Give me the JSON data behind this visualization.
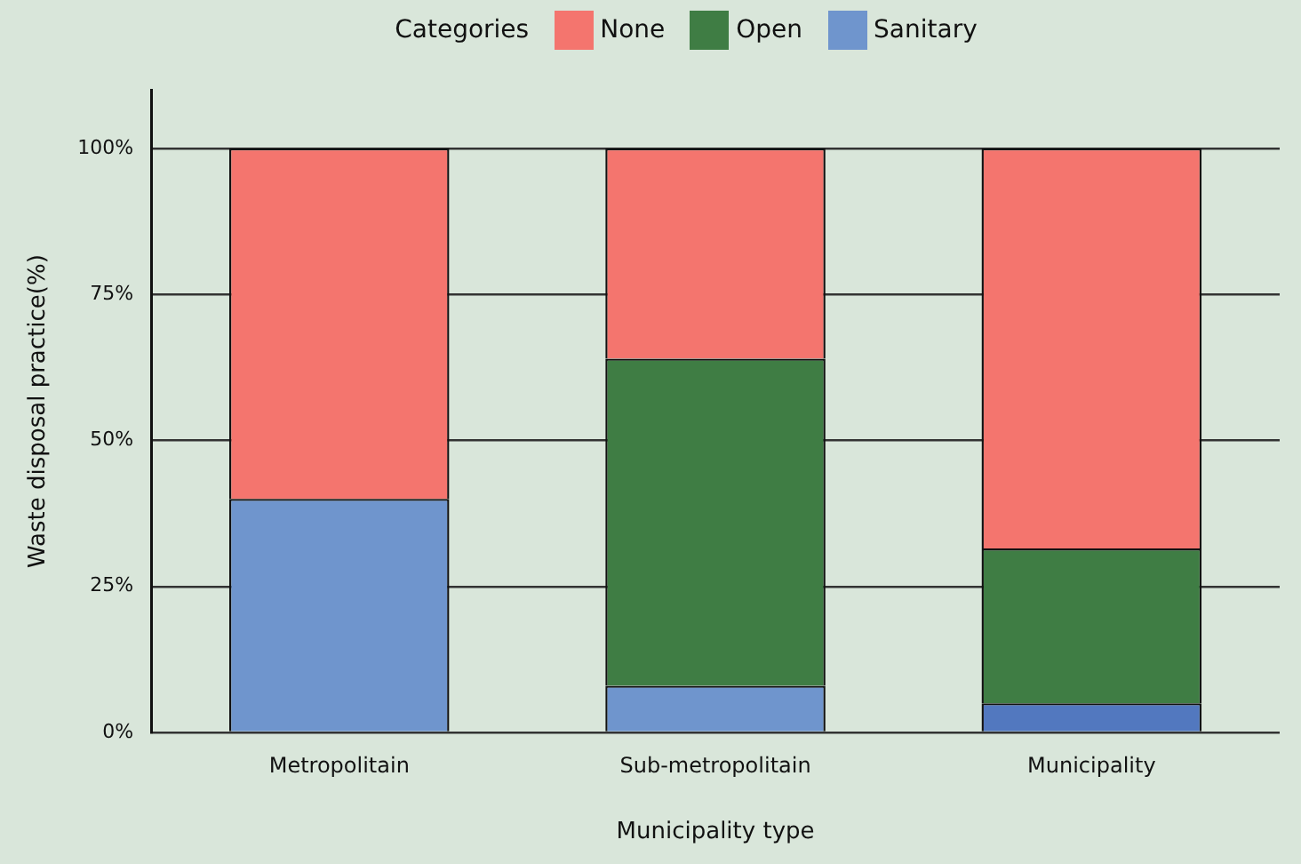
{
  "chart_data": {
    "type": "bar",
    "stacked": true,
    "xlabel": "Municipality type",
    "ylabel": "Waste disposal practice(%)",
    "legend_title": "Categories",
    "legend": "top",
    "categories": [
      "Metropolitain",
      "Sub-metropolitain",
      "Municipality"
    ],
    "series": [
      {
        "name": "Sanitary",
        "color": "#6f95cd",
        "colors": [
          "#6f95cd",
          "#6f95cd",
          "#5278bf"
        ],
        "values": [
          40,
          8,
          5
        ]
      },
      {
        "name": "Open",
        "color": "#3f7d44",
        "values": [
          0,
          56,
          26.5
        ]
      },
      {
        "name": "None",
        "color": "#f4756e",
        "values": [
          60,
          36,
          68.5
        ]
      }
    ],
    "ylim": [
      0,
      110
    ],
    "yticks": [
      {
        "value": 0,
        "label": "0%"
      },
      {
        "value": 25,
        "label": "25%"
      },
      {
        "value": 50,
        "label": "50%"
      },
      {
        "value": 75,
        "label": "75%"
      },
      {
        "value": 100,
        "label": "100%"
      }
    ],
    "grid": "y"
  }
}
